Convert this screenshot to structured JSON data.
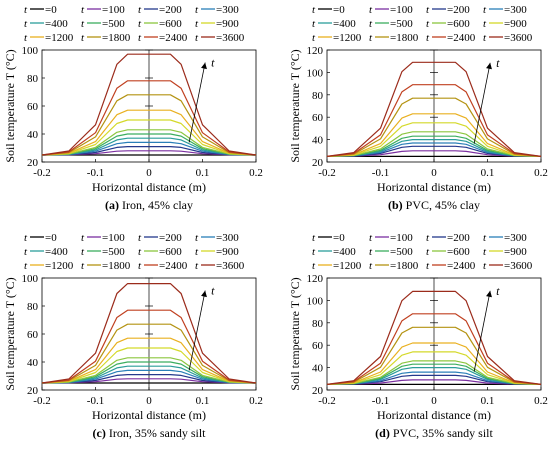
{
  "figure": {
    "legend_prefix": "t",
    "legend_labels": [
      "=0",
      "=100",
      "=200",
      "=300",
      "=400",
      "=500",
      "=600",
      "=900",
      "=1200",
      "=1800",
      "=2400",
      "=3600"
    ],
    "series_colors": [
      "#000000",
      "#7b2fa0",
      "#24388c",
      "#2a7fb8",
      "#2b9d9a",
      "#3cae5f",
      "#8cc63f",
      "#d4d92a",
      "#e9b020",
      "#b49312",
      "#c04020",
      "#9b2b1b"
    ],
    "arrow_label": "t"
  },
  "chart_data": [
    {
      "type": "line",
      "caption_tag": "(a)",
      "caption_text": " Iron, 45% clay",
      "xlabel": "Horizontal distance (m)",
      "ylabel": "Soil temperature T (°C)",
      "xlim": [
        -0.2,
        0.2
      ],
      "ylim": [
        20,
        100
      ],
      "xticks": [
        "-0.2",
        "-0.1",
        "0",
        "0.1",
        "0.2"
      ],
      "yticks": [
        "20",
        "40",
        "60",
        "80",
        "100"
      ],
      "grid": false,
      "legend_position": "top",
      "profile_x": [
        -0.2,
        -0.15,
        -0.1,
        -0.06,
        -0.04,
        0.04,
        0.06,
        0.1,
        0.15,
        0.2
      ],
      "series": [
        {
          "name": "t=0",
          "plateau": 25
        },
        {
          "name": "t=100",
          "plateau": 28
        },
        {
          "name": "t=200",
          "plateau": 31
        },
        {
          "name": "t=300",
          "plateau": 34
        },
        {
          "name": "t=400",
          "plateau": 37
        },
        {
          "name": "t=500",
          "plateau": 40
        },
        {
          "name": "t=600",
          "plateau": 43
        },
        {
          "name": "t=900",
          "plateau": 50
        },
        {
          "name": "t=1200",
          "plateau": 57
        },
        {
          "name": "t=1800",
          "plateau": 68
        },
        {
          "name": "t=2400",
          "plateau": 78
        },
        {
          "name": "t=3600",
          "plateau": 97
        }
      ]
    },
    {
      "type": "line",
      "caption_tag": "(b)",
      "caption_text": " PVC, 45% clay",
      "xlabel": "Horizontal distance (m)",
      "ylabel": "Soil temperature T (°C)",
      "xlim": [
        -0.2,
        0.2
      ],
      "ylim": [
        20,
        120
      ],
      "xticks": [
        "-0.2",
        "-0.1",
        "0",
        "0.1",
        "0.2"
      ],
      "yticks": [
        "20",
        "40",
        "60",
        "80",
        "100",
        "120"
      ],
      "grid": false,
      "legend_position": "top",
      "profile_x": [
        -0.2,
        -0.15,
        -0.1,
        -0.06,
        -0.04,
        0.04,
        0.06,
        0.1,
        0.15,
        0.2
      ],
      "series": [
        {
          "name": "t=0",
          "plateau": 25
        },
        {
          "name": "t=100",
          "plateau": 30
        },
        {
          "name": "t=200",
          "plateau": 34
        },
        {
          "name": "t=300",
          "plateau": 37
        },
        {
          "name": "t=400",
          "plateau": 40
        },
        {
          "name": "t=500",
          "plateau": 43
        },
        {
          "name": "t=600",
          "plateau": 47
        },
        {
          "name": "t=900",
          "plateau": 55
        },
        {
          "name": "t=1200",
          "plateau": 63
        },
        {
          "name": "t=1800",
          "plateau": 77
        },
        {
          "name": "t=2400",
          "plateau": 89
        },
        {
          "name": "t=3600",
          "plateau": 109
        }
      ]
    },
    {
      "type": "line",
      "caption_tag": "(c)",
      "caption_text": " Iron, 35% sandy silt",
      "xlabel": "Horizontal distance (m)",
      "ylabel": "Soil temperature T (°C)",
      "xlim": [
        -0.2,
        0.2
      ],
      "ylim": [
        20,
        100
      ],
      "xticks": [
        "-0.2",
        "-0.1",
        "0",
        "0.1",
        "0.2"
      ],
      "yticks": [
        "20",
        "40",
        "60",
        "80",
        "100"
      ],
      "grid": false,
      "legend_position": "top",
      "profile_x": [
        -0.2,
        -0.15,
        -0.1,
        -0.06,
        -0.04,
        0.04,
        0.06,
        0.1,
        0.15,
        0.2
      ],
      "series": [
        {
          "name": "t=0",
          "plateau": 25
        },
        {
          "name": "t=100",
          "plateau": 28
        },
        {
          "name": "t=200",
          "plateau": 31
        },
        {
          "name": "t=300",
          "plateau": 34
        },
        {
          "name": "t=400",
          "plateau": 37
        },
        {
          "name": "t=500",
          "plateau": 40
        },
        {
          "name": "t=600",
          "plateau": 43
        },
        {
          "name": "t=900",
          "plateau": 50
        },
        {
          "name": "t=1200",
          "plateau": 57
        },
        {
          "name": "t=1800",
          "plateau": 67
        },
        {
          "name": "t=2400",
          "plateau": 77
        },
        {
          "name": "t=3600",
          "plateau": 96
        }
      ]
    },
    {
      "type": "line",
      "caption_tag": "(d)",
      "caption_text": " PVC, 35% sandy silt",
      "xlabel": "Horizontal distance (m)",
      "ylabel": "Soil temperature T (°C)",
      "xlim": [
        -0.2,
        0.2
      ],
      "ylim": [
        20,
        120
      ],
      "xticks": [
        "-0.2",
        "-0.1",
        "0",
        "0.1",
        "0.2"
      ],
      "yticks": [
        "20",
        "40",
        "60",
        "80",
        "100",
        "120"
      ],
      "grid": false,
      "legend_position": "top",
      "profile_x": [
        -0.2,
        -0.15,
        -0.1,
        -0.06,
        -0.04,
        0.04,
        0.06,
        0.1,
        0.15,
        0.2
      ],
      "series": [
        {
          "name": "t=0",
          "plateau": 25
        },
        {
          "name": "t=100",
          "plateau": 29
        },
        {
          "name": "t=200",
          "plateau": 33
        },
        {
          "name": "t=300",
          "plateau": 36
        },
        {
          "name": "t=400",
          "plateau": 40
        },
        {
          "name": "t=500",
          "plateau": 43
        },
        {
          "name": "t=600",
          "plateau": 46
        },
        {
          "name": "t=900",
          "plateau": 54
        },
        {
          "name": "t=1200",
          "plateau": 62
        },
        {
          "name": "t=1800",
          "plateau": 76
        },
        {
          "name": "t=2400",
          "plateau": 88
        },
        {
          "name": "t=3600",
          "plateau": 108
        }
      ]
    }
  ]
}
